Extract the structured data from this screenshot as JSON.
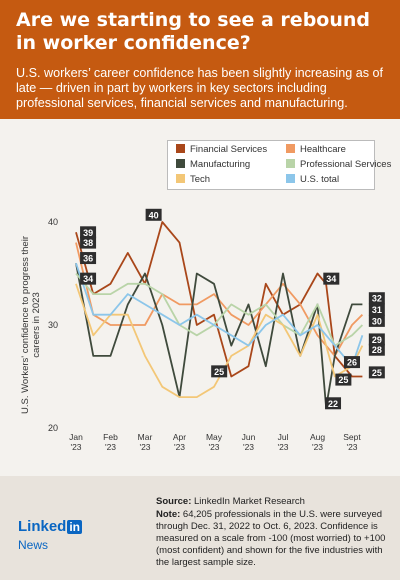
{
  "header": {
    "title": "Are we starting to see a rebound in worker confidence?",
    "subtitle": "U.S. workers’ career confidence has been slightly increasing as of late — driven in part by workers in key sectors including professional services, financial services and manufacturing."
  },
  "footer": {
    "source_label": "Source:",
    "source_text": "LinkedIn Market Research",
    "note_label": "Note:",
    "note_text": "64,205 professionals in the U.S. were surveyed through Dec. 31, 2022 to Oct. 6, 2023. Confidence is measured on a scale from -100 (most worried) to +100 (most confident) and shown for the five industries with the largest sample size.",
    "logo_word": "Linked",
    "logo_in": "in",
    "logo_news": "News"
  },
  "chart_data": {
    "type": "line",
    "ylabel": "U.S. Workers' confidence to progress their careers in 2023",
    "ylim": [
      20,
      40
    ],
    "yticks": [
      20,
      30,
      40
    ],
    "xticks": [
      {
        "label": "Jan",
        "sub": "'23",
        "x": 0
      },
      {
        "label": "Feb",
        "sub": "'23",
        "x": 1
      },
      {
        "label": "Mar",
        "sub": "'23",
        "x": 2
      },
      {
        "label": "Apr",
        "sub": "'23",
        "x": 3
      },
      {
        "label": "May",
        "sub": "'23",
        "x": 4
      },
      {
        "label": "Jun",
        "sub": "'23",
        "x": 5
      },
      {
        "label": "Jul",
        "sub": "'23",
        "x": 6
      },
      {
        "label": "Aug",
        "sub": "'23",
        "x": 7
      },
      {
        "label": "Sept",
        "sub": "'23",
        "x": 8
      }
    ],
    "legend_placement": "top-right",
    "grid": false,
    "series": [
      {
        "name": "Financial Services",
        "color": "#a9471a",
        "x": [
          0,
          0.5,
          1,
          1.5,
          2,
          2.5,
          3,
          3.5,
          4,
          4.5,
          5,
          5.5,
          6,
          6.5,
          7,
          7.25,
          7.5,
          8,
          8.3
        ],
        "y": [
          39,
          33,
          34,
          37,
          34,
          40,
          38,
          30,
          31,
          25,
          26,
          34,
          31,
          32,
          35,
          34,
          27,
          25,
          25
        ]
      },
      {
        "name": "Healthcare",
        "color": "#f09a62",
        "x": [
          0,
          0.5,
          1,
          1.5,
          2,
          2.5,
          3,
          3.5,
          4,
          4.5,
          5,
          5.5,
          6,
          6.5,
          7,
          7.5,
          8,
          8.3
        ],
        "y": [
          38,
          31,
          30,
          30,
          30,
          33,
          32,
          32,
          33,
          31,
          30,
          32,
          34,
          32,
          29,
          27,
          30,
          31
        ]
      },
      {
        "name": "Manufacturing",
        "color": "#3f4a3c",
        "x": [
          0,
          0.5,
          1,
          1.5,
          2,
          2.5,
          3,
          3.5,
          4,
          4.5,
          5,
          5.5,
          6,
          6.5,
          7,
          7.25,
          7.5,
          8,
          8.3
        ],
        "y": [
          36,
          27,
          27,
          32,
          35,
          30,
          23,
          35,
          34,
          28,
          32,
          26,
          35,
          27,
          32,
          22,
          27,
          32,
          32
        ]
      },
      {
        "name": "Professional Services",
        "color": "#b9d4a8",
        "x": [
          0,
          0.5,
          1,
          1.5,
          2,
          2.5,
          3,
          3.5,
          4,
          4.5,
          5,
          5.5,
          6,
          6.5,
          7,
          7.5,
          8,
          8.3
        ],
        "y": [
          35,
          33,
          33,
          34,
          34,
          33,
          30,
          29,
          30,
          32,
          31,
          32,
          30,
          29,
          32,
          28,
          29,
          30
        ]
      },
      {
        "name": "Tech",
        "color": "#f3c777",
        "x": [
          0,
          0.5,
          1,
          1.5,
          2,
          2.5,
          3,
          3.5,
          4,
          4.5,
          5,
          5.5,
          6,
          6.5,
          7,
          7.5,
          8,
          8.3
        ],
        "y": [
          34,
          29,
          31,
          31,
          27,
          24,
          23,
          23,
          24,
          27,
          28,
          31,
          30,
          27,
          31,
          25,
          26,
          28
        ]
      },
      {
        "name": "U.S. total",
        "color": "#8cc6ea",
        "x": [
          0,
          0.5,
          1,
          1.5,
          2,
          2.5,
          3,
          3.5,
          4,
          4.5,
          5,
          5.5,
          6,
          6.5,
          7,
          7.5,
          8,
          8.3
        ],
        "y": [
          36,
          31,
          31,
          33,
          32,
          31,
          30,
          31,
          30,
          29,
          28,
          30,
          31,
          29,
          30,
          28,
          26,
          29
        ]
      }
    ],
    "annotations": [
      {
        "text": "39",
        "x": 0.35,
        "y": 39
      },
      {
        "text": "38",
        "x": 0.35,
        "y": 38
      },
      {
        "text": "36",
        "x": 0.35,
        "y": 36.5
      },
      {
        "text": "34",
        "x": 0.35,
        "y": 34.5
      },
      {
        "text": "40",
        "x": 2.25,
        "y": 40.7
      },
      {
        "text": "25",
        "x": 4.15,
        "y": 25.5
      },
      {
        "text": "34",
        "x": 7.4,
        "y": 34.5
      },
      {
        "text": "22",
        "x": 7.45,
        "y": 22.4
      },
      {
        "text": "25",
        "x": 7.75,
        "y": 24.7
      },
      {
        "text": "26",
        "x": 8.0,
        "y": 26.4
      },
      {
        "text": "32",
        "x": 8.72,
        "y": 32.6
      },
      {
        "text": "31",
        "x": 8.72,
        "y": 31.5
      },
      {
        "text": "30",
        "x": 8.72,
        "y": 30.4
      },
      {
        "text": "29",
        "x": 8.72,
        "y": 28.6
      },
      {
        "text": "28",
        "x": 8.72,
        "y": 27.6
      },
      {
        "text": "25",
        "x": 8.72,
        "y": 25.4
      }
    ]
  }
}
